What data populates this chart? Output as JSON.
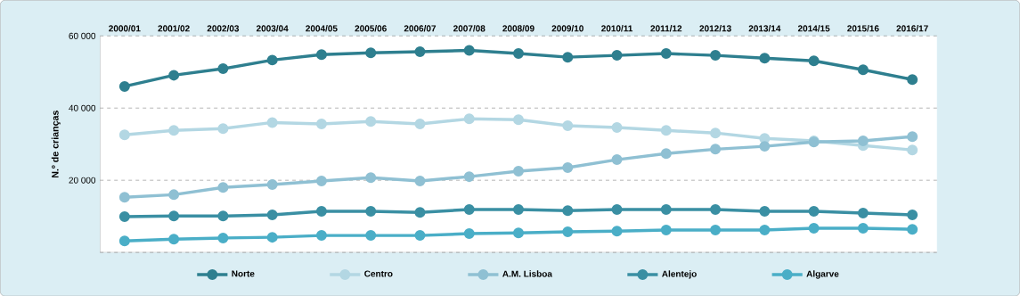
{
  "chart_data": {
    "type": "line",
    "ylabel": "N.º de crianças",
    "categories": [
      "2000/01",
      "2001/02",
      "2002/03",
      "2003/04",
      "2004/05",
      "2005/06",
      "2006/07",
      "2007/08",
      "2008/09",
      "2009/10",
      "2010/11",
      "2011/12",
      "2012/13",
      "2013/14",
      "2014/15",
      "2015/16",
      "2016/17"
    ],
    "series": [
      {
        "name": "Norte",
        "color": "#2e7f8f",
        "values": [
          46000,
          49100,
          50900,
          53300,
          54800,
          55300,
          55600,
          56000,
          55100,
          54100,
          54600,
          55100,
          54600,
          53800,
          53100,
          50600,
          47900
        ]
      },
      {
        "name": "Centro",
        "color": "#b3d7e3",
        "values": [
          32600,
          33800,
          34300,
          36000,
          35600,
          36300,
          35600,
          37000,
          36800,
          35100,
          34600,
          33800,
          33100,
          31600,
          30900,
          29600,
          28400
        ]
      },
      {
        "name": "A.M. Lisboa",
        "color": "#8fc0d3",
        "values": [
          15300,
          16000,
          18000,
          18800,
          19800,
          20700,
          19800,
          21000,
          22500,
          23500,
          25700,
          27400,
          28600,
          29400,
          30600,
          30900,
          32100
        ]
      },
      {
        "name": "Alentejo",
        "color": "#3a8fa3",
        "values": [
          9900,
          10100,
          10100,
          10400,
          11400,
          11400,
          11100,
          11900,
          11900,
          11600,
          11900,
          11900,
          11900,
          11400,
          11400,
          10900,
          10400
        ]
      },
      {
        "name": "Algarve",
        "color": "#4aaec7",
        "values": [
          3200,
          3700,
          4000,
          4200,
          4700,
          4700,
          4700,
          5200,
          5400,
          5700,
          5900,
          6200,
          6200,
          6200,
          6700,
          6700,
          6400
        ]
      }
    ],
    "ylim": [
      0,
      60000
    ],
    "yticks": [
      {
        "value": 0,
        "label": null
      },
      {
        "value": 20000,
        "label": "20 000"
      },
      {
        "value": 40000,
        "label": "40 000"
      },
      {
        "value": 60000,
        "label": "60 000"
      }
    ],
    "grid": "y",
    "legend": "bottom",
    "marker": "circle",
    "line_style": "solid"
  }
}
